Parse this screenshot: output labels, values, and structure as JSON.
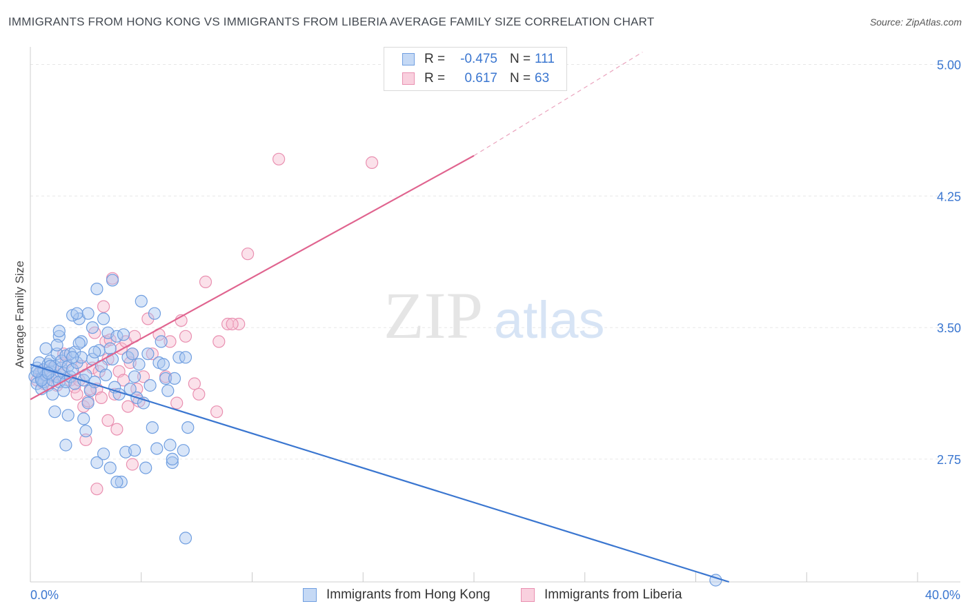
{
  "title": "IMMIGRANTS FROM HONG KONG VS IMMIGRANTS FROM LIBERIA AVERAGE FAMILY SIZE CORRELATION CHART",
  "source": "Source: ZipAtlas.com",
  "watermark": {
    "zip": "ZIP",
    "atlas": "atlas"
  },
  "colors": {
    "blue_fill": "#a9c6f0",
    "blue_stroke": "#6f9ee0",
    "blue_line": "#3a76d0",
    "pink_fill": "#f6bcd0",
    "pink_stroke": "#e98fb0",
    "pink_line": "#e0648f",
    "grid": "#e6e6e6",
    "value_text": "#3a76d0"
  },
  "legend": {
    "rows": [
      {
        "r_label": "R =",
        "r_value": "-0.475",
        "n_label": "N =",
        "n_value": "111"
      },
      {
        "r_label": "R =",
        "r_value": "0.617",
        "n_label": "N =",
        "n_value": "63"
      }
    ]
  },
  "x_labels": {
    "min": "0.0%",
    "max": "40.0%"
  },
  "chart_data": {
    "type": "scatter",
    "title": "IMMIGRANTS FROM HONG KONG VS IMMIGRANTS FROM LIBERIA AVERAGE FAMILY SIZE CORRELATION CHART",
    "xlabel": "",
    "ylabel": "Average Family Size",
    "xlim": [
      0,
      40
    ],
    "ylim": [
      2.05,
      5.1
    ],
    "y_ticks": [
      2.75,
      3.5,
      4.25,
      5.0
    ],
    "y_tick_labels": [
      "2.75",
      "3.50",
      "4.25",
      "5.00"
    ],
    "x_tick_labels": [
      "0.0%",
      "40.0%"
    ],
    "grid": true,
    "legend_position": "top-center",
    "series": [
      {
        "name": "Immigrants from Hong Kong",
        "color": "#a9c6f0",
        "trend": {
          "x": [
            0,
            31.5
          ],
          "y": [
            3.29,
            2.05
          ]
        },
        "points": [
          [
            0.2,
            3.22
          ],
          [
            0.3,
            3.18
          ],
          [
            0.3,
            3.27
          ],
          [
            0.4,
            3.24
          ],
          [
            0.4,
            3.3
          ],
          [
            0.5,
            3.15
          ],
          [
            0.5,
            3.21
          ],
          [
            0.6,
            3.26
          ],
          [
            0.6,
            3.19
          ],
          [
            0.7,
            3.23
          ],
          [
            0.7,
            3.38
          ],
          [
            0.8,
            3.29
          ],
          [
            0.8,
            3.17
          ],
          [
            0.9,
            3.25
          ],
          [
            0.9,
            3.31
          ],
          [
            1.0,
            3.2
          ],
          [
            1.0,
            3.12
          ],
          [
            1.1,
            3.28
          ],
          [
            1.1,
            3.02
          ],
          [
            1.2,
            3.35
          ],
          [
            1.2,
            3.22
          ],
          [
            1.3,
            3.45
          ],
          [
            1.3,
            3.19
          ],
          [
            1.4,
            3.27
          ],
          [
            1.4,
            3.31
          ],
          [
            1.5,
            3.14
          ],
          [
            1.5,
            3.24
          ],
          [
            1.6,
            3.34
          ],
          [
            1.6,
            3.19
          ],
          [
            1.7,
            3.28
          ],
          [
            1.7,
            3.0
          ],
          [
            1.8,
            3.22
          ],
          [
            1.8,
            3.35
          ],
          [
            1.9,
            3.26
          ],
          [
            2.0,
            3.18
          ],
          [
            2.0,
            3.36
          ],
          [
            2.1,
            3.3
          ],
          [
            2.2,
            3.55
          ],
          [
            2.3,
            3.33
          ],
          [
            2.3,
            3.42
          ],
          [
            2.4,
            3.2
          ],
          [
            2.5,
            3.23
          ],
          [
            2.5,
            2.91
          ],
          [
            2.6,
            3.07
          ],
          [
            2.7,
            3.14
          ],
          [
            2.8,
            3.32
          ],
          [
            2.9,
            3.19
          ],
          [
            3.0,
            3.72
          ],
          [
            3.1,
            3.37
          ],
          [
            3.2,
            3.28
          ],
          [
            3.3,
            2.78
          ],
          [
            3.4,
            3.23
          ],
          [
            3.5,
            3.47
          ],
          [
            3.6,
            3.38
          ],
          [
            3.7,
            3.32
          ],
          [
            3.8,
            3.16
          ],
          [
            3.9,
            3.45
          ],
          [
            4.0,
            3.12
          ],
          [
            4.1,
            2.62
          ],
          [
            4.2,
            3.46
          ],
          [
            4.3,
            2.79
          ],
          [
            4.4,
            3.33
          ],
          [
            4.5,
            3.15
          ],
          [
            4.6,
            3.35
          ],
          [
            4.7,
            3.22
          ],
          [
            4.8,
            3.1
          ],
          [
            4.9,
            3.29
          ],
          [
            5.0,
            3.65
          ],
          [
            5.1,
            3.07
          ],
          [
            5.2,
            2.7
          ],
          [
            5.3,
            3.35
          ],
          [
            5.4,
            3.17
          ],
          [
            5.5,
            2.93
          ],
          [
            5.6,
            3.58
          ],
          [
            5.7,
            2.81
          ],
          [
            5.8,
            3.3
          ],
          [
            5.9,
            3.42
          ],
          [
            6.0,
            3.29
          ],
          [
            6.1,
            3.21
          ],
          [
            6.2,
            3.14
          ],
          [
            6.3,
            2.83
          ],
          [
            6.4,
            2.73
          ],
          [
            6.5,
            3.21
          ],
          [
            6.7,
            3.33
          ],
          [
            6.9,
            2.8
          ],
          [
            7.0,
            3.33
          ],
          [
            7.1,
            2.93
          ],
          [
            1.3,
            3.48
          ],
          [
            1.9,
            3.57
          ],
          [
            2.6,
            3.58
          ],
          [
            2.8,
            3.5
          ],
          [
            3.3,
            3.55
          ],
          [
            3.7,
            3.77
          ],
          [
            1.9,
            3.33
          ],
          [
            2.2,
            3.41
          ],
          [
            2.4,
            2.98
          ],
          [
            3.0,
            2.73
          ],
          [
            3.6,
            2.7
          ],
          [
            3.9,
            2.62
          ],
          [
            4.7,
            2.8
          ],
          [
            6.4,
            2.75
          ],
          [
            2.1,
            3.58
          ],
          [
            0.5,
            3.2
          ],
          [
            0.9,
            3.28
          ],
          [
            1.6,
            2.83
          ],
          [
            2.9,
            3.36
          ],
          [
            0.3,
            3.25
          ],
          [
            7.0,
            2.3
          ],
          [
            30.9,
            2.06
          ],
          [
            1.2,
            3.4
          ],
          [
            0.8,
            3.24
          ]
        ]
      },
      {
        "name": "Immigrants from Liberia",
        "color": "#f6bcd0",
        "trend": {
          "x": [
            0,
            20
          ],
          "y": [
            3.09,
            4.48
          ]
        },
        "trend_extension": {
          "x": [
            20,
            27.6
          ],
          "y": [
            4.48,
            5.07
          ]
        },
        "points": [
          [
            0.3,
            3.2
          ],
          [
            0.5,
            3.25
          ],
          [
            0.6,
            3.18
          ],
          [
            0.8,
            3.22
          ],
          [
            1.0,
            3.27
          ],
          [
            1.2,
            3.17
          ],
          [
            1.4,
            3.23
          ],
          [
            1.6,
            3.3
          ],
          [
            1.8,
            3.2
          ],
          [
            2.0,
            3.16
          ],
          [
            2.1,
            3.12
          ],
          [
            2.3,
            3.28
          ],
          [
            2.4,
            3.05
          ],
          [
            2.6,
            3.08
          ],
          [
            2.8,
            3.27
          ],
          [
            2.9,
            3.47
          ],
          [
            3.0,
            3.15
          ],
          [
            3.1,
            3.25
          ],
          [
            3.2,
            3.1
          ],
          [
            3.3,
            3.62
          ],
          [
            3.4,
            3.42
          ],
          [
            3.5,
            3.32
          ],
          [
            3.6,
            3.43
          ],
          [
            3.7,
            3.78
          ],
          [
            3.8,
            3.12
          ],
          [
            3.9,
            2.92
          ],
          [
            4.0,
            3.25
          ],
          [
            4.1,
            3.38
          ],
          [
            4.2,
            3.2
          ],
          [
            4.3,
            3.42
          ],
          [
            4.4,
            3.05
          ],
          [
            4.5,
            3.3
          ],
          [
            4.6,
            3.35
          ],
          [
            4.7,
            3.45
          ],
          [
            4.8,
            3.15
          ],
          [
            4.9,
            3.08
          ],
          [
            5.1,
            3.22
          ],
          [
            5.3,
            3.55
          ],
          [
            5.5,
            3.35
          ],
          [
            5.8,
            3.46
          ],
          [
            6.1,
            3.22
          ],
          [
            6.3,
            3.42
          ],
          [
            6.6,
            3.07
          ],
          [
            6.8,
            3.54
          ],
          [
            7.0,
            3.45
          ],
          [
            7.4,
            3.18
          ],
          [
            7.6,
            3.12
          ],
          [
            7.9,
            3.76
          ],
          [
            8.5,
            3.42
          ],
          [
            8.9,
            3.52
          ],
          [
            9.4,
            3.52
          ],
          [
            9.8,
            3.92
          ],
          [
            11.2,
            4.46
          ],
          [
            15.4,
            4.44
          ],
          [
            1.5,
            3.35
          ],
          [
            2.2,
            3.2
          ],
          [
            2.7,
            3.15
          ],
          [
            3.5,
            2.97
          ],
          [
            2.5,
            2.86
          ],
          [
            3.0,
            2.58
          ],
          [
            4.6,
            2.72
          ],
          [
            8.4,
            3.02
          ],
          [
            9.1,
            3.52
          ]
        ]
      }
    ]
  }
}
